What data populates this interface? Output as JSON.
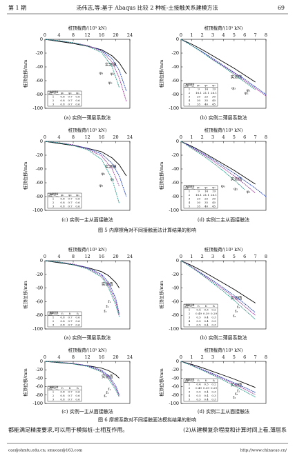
{
  "header": {
    "issue": "第 1 期",
    "title": "汤伟志,等:基于 Abaqus 比较 2 种桩-土接触关系建模方法",
    "page": "69"
  },
  "figures": [
    {
      "caption": "图 5  内摩擦角对不同接触面法计算结果的影响"
    },
    {
      "caption": "图 6  摩擦系数对不同接触面法模拟结果的影响"
    }
  ],
  "body": [
    "都能满足精度要求,可以用于模拟桩-土相互作用。",
    "(2)从建模复杂程度和计算时间上看,薄层系"
  ],
  "footer": {
    "email": "cae@shmtu.edu.cn; smucae@163.com",
    "url": "http://www.chinacae.cn/"
  },
  "chart_data": [
    {
      "type": "line",
      "caption": "(a) 实例一薄层系数法",
      "xlabel": "桩顶载荷/(10³ kN)",
      "ylabel": "桩顶位移/mm",
      "xlim": [
        0,
        24
      ],
      "xticks": [
        0,
        4,
        8,
        12,
        16,
        20,
        24
      ],
      "ylim": [
        -100,
        0
      ],
      "yticks": [
        0,
        -20,
        -40,
        -60,
        -80,
        -100
      ],
      "x": [
        0,
        4,
        8,
        12,
        16,
        19,
        21,
        23
      ],
      "series": [
        {
          "name": "实测值",
          "color": "#000000",
          "values": [
            0,
            -3,
            -6,
            -10,
            -15,
            -24,
            -34,
            -50
          ]
        },
        {
          "name": "φ₁",
          "color": "#1f3fbf",
          "values": [
            0,
            -2,
            -5,
            -9,
            -16,
            -28,
            -45,
            -75
          ]
        },
        {
          "name": "φ₂",
          "color": "#9a3c9a",
          "values": [
            0,
            -2,
            -5,
            -9,
            -17,
            -33,
            -56,
            -90
          ]
        },
        {
          "name": "φ₃",
          "color": "#2a9a8a",
          "values": [
            0,
            -2,
            -5,
            -10,
            -19,
            -40,
            -70,
            null
          ]
        }
      ],
      "table": {
        "corner": [
          "内摩擦角",
          "土层"
        ],
        "columns": [
          "φ₁",
          "φ₂",
          "φ₃"
        ],
        "rows": [
          [
            "1",
            "0.8",
            "0.7",
            "0.6"
          ],
          [
            "2",
            "0.8",
            "0.7",
            "0.6"
          ],
          [
            "3",
            "0.8",
            "0.7",
            "0.6"
          ]
        ]
      }
    },
    {
      "type": "line",
      "caption": "(b) 实例二薄层系数法",
      "xlabel": "桩顶载荷/(10³ kN)",
      "ylabel": "桩顶位移/mm",
      "xlim": [
        0,
        8
      ],
      "xticks": [
        0,
        1,
        2,
        3,
        4,
        5,
        6,
        7,
        8
      ],
      "ylim": [
        -100,
        0
      ],
      "yticks": [
        0,
        -20,
        -40,
        -60,
        -80,
        -100
      ],
      "x": [
        0,
        1,
        2,
        3,
        4,
        5,
        6,
        7,
        8
      ],
      "series": [
        {
          "name": "实测值",
          "color": "#000000",
          "values": [
            0,
            -7,
            -15,
            -24,
            -33,
            -42,
            -52,
            -62,
            null
          ]
        },
        {
          "name": "φ₁",
          "color": "#1f3fbf",
          "values": [
            0,
            -9,
            -18,
            -28,
            -38,
            -48,
            -58,
            -69,
            -80
          ]
        },
        {
          "name": "φ₂",
          "color": "#9a3c9a",
          "values": [
            0,
            -9,
            -19,
            -29,
            -39,
            -49,
            -60,
            -71,
            -82
          ]
        },
        {
          "name": "φ₃",
          "color": "#2a9a8a",
          "values": [
            0,
            -9,
            -19,
            -30,
            -40,
            -51,
            -62,
            -73,
            null
          ]
        }
      ],
      "table": {
        "corner": [
          "内摩擦角",
          "土层"
        ],
        "columns": [
          "φ₁",
          "φ₂",
          "φ₃"
        ],
        "rows": [
          [
            "1",
            "9",
            "14",
            "19"
          ],
          [
            "2",
            "16.1",
            "21.1",
            "26.1"
          ],
          [
            "3",
            "20",
            "25",
            "30"
          ],
          [
            "4",
            "30",
            "35",
            "40"
          ],
          [
            "5",
            "35",
            "40",
            "45"
          ]
        ]
      }
    },
    {
      "type": "line",
      "caption": "(c) 实例一主从面接触法",
      "xlabel": "桩顶载荷/(10³ kN)",
      "ylabel": "桩顶位移/mm",
      "xlim": [
        0,
        24
      ],
      "xticks": [
        0,
        4,
        8,
        12,
        16,
        20,
        24
      ],
      "ylim": [
        -100,
        0
      ],
      "yticks": [
        0,
        -20,
        -40,
        -60,
        -80,
        -100
      ],
      "x": [
        0,
        4,
        8,
        12,
        16,
        19,
        21,
        23
      ],
      "series": [
        {
          "name": "实测值",
          "color": "#000000",
          "values": [
            0,
            -3,
            -6,
            -10,
            -15,
            -24,
            -34,
            -50
          ]
        },
        {
          "name": "φ₁",
          "color": "#1f3fbf",
          "values": [
            0,
            -2,
            -5,
            -10,
            -18,
            -32,
            -50,
            -80
          ]
        },
        {
          "name": "φ₂",
          "color": "#9a3c9a",
          "values": [
            0,
            -2,
            -5,
            -11,
            -21,
            -40,
            -65,
            null
          ]
        },
        {
          "name": "φ₃",
          "color": "#2a9a8a",
          "values": [
            0,
            -2,
            -6,
            -12,
            -26,
            -55,
            -90,
            null
          ]
        }
      ],
      "table": {
        "corner": [
          "内摩擦角",
          "土层"
        ],
        "columns": [
          "φ₁",
          "φ₂",
          "φ₃"
        ],
        "rows": [
          [
            "1",
            "0.8",
            "0.7",
            "0.6"
          ],
          [
            "2",
            "0.8",
            "0.7",
            "0.6"
          ],
          [
            "3",
            "0.8",
            "0.7",
            "0.6"
          ]
        ]
      }
    },
    {
      "type": "line",
      "caption": "(d) 实例二主从面接触法",
      "xlabel": "桩顶载荷/(10³ kN)",
      "ylabel": "桩顶位移/mm",
      "xlim": [
        0,
        8
      ],
      "xticks": [
        0,
        1,
        2,
        3,
        4,
        5,
        6,
        7,
        8
      ],
      "ylim": [
        -100,
        0
      ],
      "yticks": [
        0,
        -20,
        -40,
        -60,
        -80,
        -100
      ],
      "x": [
        0,
        1,
        2,
        3,
        4,
        5,
        6,
        7,
        8
      ],
      "series": [
        {
          "name": "实测值",
          "color": "#000000",
          "values": [
            0,
            -7,
            -15,
            -24,
            -33,
            -42,
            -52,
            -62,
            null
          ]
        },
        {
          "name": "φ₁",
          "color": "#1f3fbf",
          "values": [
            0,
            -8,
            -17,
            -26,
            -36,
            -46,
            -57,
            -68,
            -80
          ]
        },
        {
          "name": "φ₂",
          "color": "#9a3c9a",
          "values": [
            0,
            -9,
            -18,
            -28,
            -39,
            -50,
            -62,
            -75,
            null
          ]
        },
        {
          "name": "φ₃",
          "color": "#2a9a8a",
          "values": [
            0,
            -10,
            -20,
            -31,
            -43,
            -56,
            -70,
            null,
            null
          ]
        }
      ],
      "table": {
        "corner": [
          "内摩擦角",
          "土层"
        ],
        "columns": [
          "φ₁",
          "φ₂",
          "φ₃"
        ],
        "rows": [
          [
            "1",
            "9",
            "14",
            "19"
          ],
          [
            "2",
            "16.1",
            "21.1",
            "26.1"
          ],
          [
            "3",
            "20",
            "25",
            "30"
          ],
          [
            "4",
            "30",
            "35",
            "40"
          ],
          [
            "5",
            "35",
            "40",
            "45"
          ]
        ]
      }
    },
    {
      "type": "line",
      "caption": "(a) 实例一薄层系数法",
      "xlabel": "桩顶载荷/(10³ kN)",
      "ylabel": "桩顶位移/mm",
      "xlim": [
        0,
        24
      ],
      "xticks": [
        0,
        4,
        8,
        12,
        16,
        20,
        24
      ],
      "ylim": [
        -100,
        0
      ],
      "yticks": [
        0,
        -20,
        -40,
        -60,
        -80,
        -100
      ],
      "x": [
        0,
        4,
        8,
        12,
        16,
        18,
        20,
        21
      ],
      "series": [
        {
          "name": "实测值",
          "color": "#000000",
          "values": [
            0,
            -3,
            -6,
            -10,
            -16,
            -22,
            -32,
            -40
          ]
        },
        {
          "name": "f₁",
          "color": "#1f3fbf",
          "values": [
            0,
            -2,
            -5,
            -10,
            -20,
            -32,
            -55,
            -78
          ]
        },
        {
          "name": "f₂",
          "color": "#9a3c9a",
          "values": [
            0,
            -2,
            -5,
            -11,
            -22,
            -36,
            -60,
            -80
          ]
        },
        {
          "name": "f₃",
          "color": "#2a9a8a",
          "values": [
            0,
            -2,
            -6,
            -12,
            -24,
            -40,
            -65,
            -82
          ]
        }
      ],
      "table": {
        "corner": [
          "摩擦系数",
          "土层"
        ],
        "columns": [
          "f₁",
          "f₂",
          "f₃"
        ],
        "rows": [
          [
            "1",
            "0.8",
            "0.7",
            "0.6"
          ],
          [
            "2",
            "0.8",
            "0.7",
            "0.6"
          ],
          [
            "3",
            "0.8",
            "0.7",
            "0.6"
          ]
        ]
      }
    },
    {
      "type": "line",
      "caption": "(b) 实例二薄层系数法",
      "xlabel": "桩顶载荷/(10³ kN)",
      "ylabel": "桩顶位移/mm",
      "xlim": [
        0,
        8
      ],
      "xticks": [
        0,
        1,
        2,
        3,
        4,
        5,
        6,
        7,
        8
      ],
      "ylim": [
        -100,
        0
      ],
      "yticks": [
        0,
        -20,
        -40,
        -60,
        -80,
        -100
      ],
      "x": [
        0,
        1,
        2,
        3,
        4,
        5,
        6,
        7,
        8
      ],
      "series": [
        {
          "name": "实测值",
          "color": "#000000",
          "values": [
            0,
            -7,
            -15,
            -24,
            -33,
            -42,
            -52,
            -62,
            null
          ]
        },
        {
          "name": "f₁",
          "color": "#1f3fbf",
          "values": [
            0,
            -9,
            -19,
            -29,
            -40,
            -51,
            -63,
            -76,
            null
          ]
        },
        {
          "name": "f₂",
          "color": "#9a3c9a",
          "values": [
            0,
            -9,
            -20,
            -31,
            -42,
            -54,
            -67,
            -80,
            null
          ]
        },
        {
          "name": "f₃",
          "color": "#2a9a8a",
          "values": [
            0,
            -10,
            -21,
            -33,
            -45,
            -58,
            -72,
            -86,
            null
          ]
        }
      ],
      "table": {
        "corner": [
          "摩擦系数",
          "土层"
        ],
        "columns": [
          "f₁",
          "f₂",
          "f₃"
        ],
        "rows": [
          [
            "1",
            "0.4",
            "0.3",
            "0.2"
          ],
          [
            "2",
            "0.49",
            "0.39",
            "0.29"
          ],
          [
            "3",
            "0.5",
            "0.4",
            "0.3"
          ],
          [
            "4",
            "0.5",
            "0.4",
            "0.3"
          ],
          [
            "5",
            "0.5",
            "0.4",
            "0.3"
          ]
        ]
      }
    },
    {
      "type": "line",
      "caption": "(c) 实例一主从面接触法",
      "xlabel": "桩顶载荷/(10³ kN)",
      "ylabel": "桩顶位移/mm",
      "xlim": [
        0,
        24
      ],
      "xticks": [
        0,
        4,
        8,
        12,
        16,
        20,
        24
      ],
      "ylim": [
        -100,
        0
      ],
      "yticks": [
        0,
        -20,
        -40,
        -60,
        -80,
        -100
      ],
      "x": [
        0,
        4,
        8,
        12,
        16,
        18,
        20,
        21
      ],
      "series": [
        {
          "name": "实测值",
          "color": "#000000",
          "values": [
            0,
            -3,
            -6,
            -10,
            -16,
            -22,
            -32,
            -40
          ]
        },
        {
          "name": "f₁",
          "color": "#1f3fbf",
          "values": [
            0,
            -2,
            -5,
            -10,
            -21,
            -34,
            -58,
            -80
          ]
        },
        {
          "name": "f₂",
          "color": "#9a3c9a",
          "values": [
            0,
            -2,
            -5,
            -11,
            -23,
            -38,
            -63,
            -82
          ]
        },
        {
          "name": "f₃",
          "color": "#2a9a8a",
          "values": [
            0,
            -2,
            -6,
            -12,
            -25,
            -42,
            -68,
            -85
          ]
        }
      ],
      "table": {
        "corner": [
          "摩擦系数",
          "土层"
        ],
        "columns": [
          "f₁",
          "f₂",
          "f₃"
        ],
        "rows": [
          [
            "1",
            "0.8",
            "0.7",
            "0.6"
          ],
          [
            "2",
            "0.8",
            "0.7",
            "0.6"
          ],
          [
            "3",
            "0.8",
            "0.7",
            "0.6"
          ]
        ]
      }
    },
    {
      "type": "line",
      "caption": "(d) 实例二主从面接触法",
      "xlabel": "桩顶载荷/(10³ kN)",
      "ylabel": "桩顶位移/mm",
      "xlim": [
        0,
        8
      ],
      "xticks": [
        0,
        1,
        2,
        3,
        4,
        5,
        6,
        7,
        8
      ],
      "ylim": [
        -100,
        0
      ],
      "yticks": [
        0,
        -20,
        -40,
        -60,
        -80,
        -100
      ],
      "x": [
        0,
        1,
        2,
        3,
        4,
        5,
        6,
        7,
        8
      ],
      "series": [
        {
          "name": "实测值",
          "color": "#000000",
          "values": [
            0,
            -7,
            -15,
            -24,
            -33,
            -42,
            -52,
            -62,
            null
          ]
        },
        {
          "name": "f₁",
          "color": "#1f3fbf",
          "values": [
            0,
            -9,
            -19,
            -29,
            -40,
            -51,
            -62,
            -74,
            null
          ]
        },
        {
          "name": "f₂",
          "color": "#9a3c9a",
          "values": [
            0,
            -9,
            -20,
            -31,
            -42,
            -54,
            -66,
            -79,
            null
          ]
        },
        {
          "name": "f₃",
          "color": "#2a9a8a",
          "values": [
            0,
            -10,
            -21,
            -33,
            -45,
            -58,
            -71,
            -85,
            null
          ]
        }
      ],
      "table": {
        "corner": [
          "摩擦系数",
          "土层"
        ],
        "columns": [
          "f₁",
          "f₂",
          "f₃"
        ],
        "rows": [
          [
            "1",
            "0.4",
            "0.3",
            "0.2"
          ],
          [
            "2",
            "0.49",
            "0.39",
            "0.29"
          ],
          [
            "3",
            "0.5",
            "0.4",
            "0.3"
          ],
          [
            "4",
            "0.5",
            "0.4",
            "0.3"
          ],
          [
            "5",
            "0.5",
            "0.4",
            "0.3"
          ]
        ]
      }
    }
  ]
}
